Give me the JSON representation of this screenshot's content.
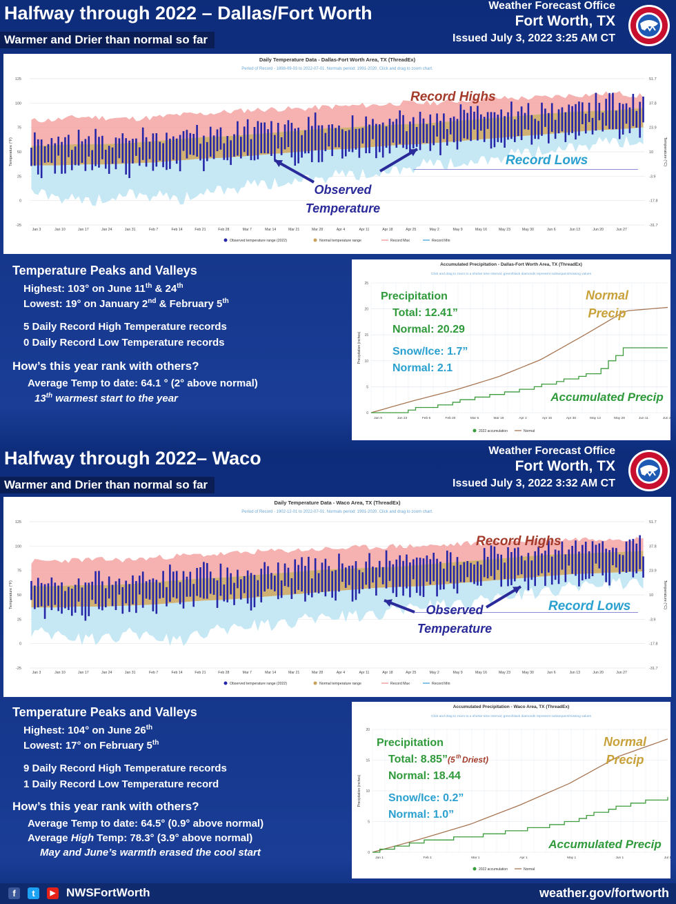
{
  "dfw": {
    "title": "Halfway through 2022 – Dallas/Fort Worth",
    "subtitle": "Warmer and Drier than normal so far",
    "office_line1": "Weather Forecast Office",
    "office_line2": "Fort Worth, TX",
    "issued": "Issued July 3, 2022 3:25 AM CT",
    "chart_title": "Daily Temperature Data - Dallas-Fort Worth Area, TX (ThreadEx)",
    "chart_subtitle": "Period of Record - 1898-09-03 to 2022-07-01. Normals period: 1991-2020. Click and drag to zoom chart.",
    "annot_record_highs": "Record Highs",
    "annot_record_lows": "Record Lows",
    "annot_observed_1": "Observed",
    "annot_observed_2": "Temperature",
    "stats_heading": "Temperature Peaks and Valleys",
    "highest_pre": "Highest: 103° on June 11",
    "highest_sup1": "th",
    "highest_mid": " & 24",
    "highest_sup2": "th",
    "lowest_pre": "Lowest: 19° on January 2",
    "lowest_sup1": "nd",
    "lowest_mid": " & February 5",
    "lowest_sup2": "th",
    "record_high_line": "5 Daily Record High Temperature records",
    "record_low_line": "0 Daily Record Low Temperature records",
    "rank_heading": "How’s this year rank with others?",
    "avg_temp": "Average Temp to date: 64.1 ° (2° above normal)",
    "rank_num": "13",
    "rank_sup": "th",
    "rank_rest": " warmest start to the year",
    "precip_title": "Accumulated Precipitation - Dallas-Fort Worth Area, TX (ThreadEx)",
    "precip_subtitle": "Click and drag to zoom to a shorter time interval; green/black diamonds represent subsequent/missing values",
    "precip_heading": "Precipitation",
    "precip_total": "Total: 12.41”",
    "precip_normal": "Normal: 20.29",
    "snow_total": "Snow/Ice: 1.7”",
    "snow_normal": "Normal: 2.1",
    "normal_precip_1": "Normal",
    "normal_precip_2": "Precip",
    "accum_precip": "Accumulated Precip"
  },
  "waco": {
    "title": "Halfway through 2022– Waco",
    "subtitle": "Warmer and Drier than normal so far",
    "office_line1": "Weather Forecast Office",
    "office_line2": "Fort Worth, TX",
    "issued": "Issued July 3, 2022 3:32 AM CT",
    "chart_title": "Daily Temperature Data - Waco Area, TX (ThreadEx)",
    "chart_subtitle": "Period of Record - 1902-12-01 to 2022-07-01. Normals period: 1991-2020. Click and drag to zoom chart.",
    "annot_record_highs": "Record Highs",
    "annot_record_lows": "Record Lows",
    "annot_observed_1": "Observed",
    "annot_observed_2": "Temperature",
    "stats_heading": "Temperature Peaks and Valleys",
    "highest_pre": "Highest: 104° on June 26",
    "highest_sup1": "th",
    "lowest_pre": "Lowest: 17° on February 5",
    "lowest_sup1": "th",
    "record_high_line": "9 Daily Record High Temperature records",
    "record_low_line": "1 Daily Record Low Temperature record",
    "rank_heading": "How’s this year rank with others?",
    "avg_temp": "Average Temp to date: 64.5° (0.9° above normal)",
    "avg_high": "Average High Temp: 78.3° (3.9° above normal)",
    "avg_high_pre": "Average ",
    "avg_high_italic": "High",
    "avg_high_post": " Temp: 78.3° (3.9° above normal)",
    "note": "May and June’s warmth erased the cool start",
    "precip_title": "Accumulated Precipitation - Waco Area, TX (ThreadEx)",
    "precip_subtitle": "Click and drag to zoom to a shorter time interval; green/black diamonds represent subsequent/missing values",
    "precip_heading": "Precipitation",
    "precip_total": "Total: 8.85”",
    "precip_rank": "(5",
    "precip_rank_sup": "th",
    "precip_rank_rest": " Driest)",
    "precip_normal": "Normal: 18.44",
    "snow_total": "Snow/Ice: 0.2”",
    "snow_normal": "Normal: 1.0”",
    "normal_precip_1": "Normal",
    "normal_precip_2": "Precip",
    "accum_precip": "Accumulated Precip"
  },
  "footer": {
    "handle": "NWSFortWorth",
    "website": "weather.gov/fortworth",
    "fb_icon": "f",
    "tw_icon": "t",
    "yt_icon": "▶"
  },
  "colors": {
    "observed": "#2525a8",
    "normal_range": "#c8a25a",
    "record_max": "#f4a3a3",
    "record_min": "#bfe6f3",
    "accumulation": "#3c9c3c",
    "normal_precip": "#a87552",
    "annotation_red": "#a33a2a",
    "annotation_blue": "#2aa0d0",
    "annotation_navy": "#2a2a9a",
    "green_text": "#2f9a3a",
    "gold_text": "#c9a13a"
  },
  "chart_data": [
    {
      "type": "area",
      "title": "Daily Temperature Data - Dallas-Fort Worth Area, TX (ThreadEx)",
      "ylabel": "Temperature (°F)",
      "ylabel_right": "Temperature (°C)",
      "ylim": [
        -25,
        125
      ],
      "yticks": [
        125,
        100,
        75,
        50,
        25,
        0,
        -25
      ],
      "yticks_right": [
        "51.7",
        "37.8",
        "23.9",
        "10",
        "-3.9",
        "-17.8",
        "-31.7"
      ],
      "xticks": [
        "Jan 3",
        "Jan 10",
        "Jan 17",
        "Jan 24",
        "Jan 31",
        "Feb 7",
        "Feb 14",
        "Feb 21",
        "Feb 28",
        "Mar 7",
        "Mar 14",
        "Mar 21",
        "Mar 28",
        "Apr 4",
        "Apr 11",
        "Apr 18",
        "Apr 25",
        "May 2",
        "May 9",
        "May 16",
        "May 23",
        "May 30",
        "Jun 6",
        "Jun 13",
        "Jun 20",
        "Jun 27"
      ],
      "legend": [
        "Observed temperature range (2022)",
        "Normal temperature range",
        "Record Max",
        "Record Min"
      ],
      "series": [
        {
          "name": "Record Max",
          "values": [
            82,
            83,
            86,
            85,
            84,
            85,
            88,
            89,
            91,
            93,
            94,
            94,
            96,
            97,
            98,
            100,
            100,
            101,
            104,
            105,
            105,
            106,
            108,
            109,
            110,
            107
          ]
        },
        {
          "name": "Normal High",
          "values": [
            56,
            57,
            58,
            58,
            59,
            61,
            63,
            65,
            66,
            68,
            70,
            72,
            74,
            75,
            77,
            78,
            79,
            81,
            83,
            85,
            87,
            89,
            91,
            92,
            93,
            95
          ]
        },
        {
          "name": "Normal Low",
          "values": [
            36,
            36,
            37,
            37,
            38,
            39,
            41,
            43,
            44,
            46,
            48,
            50,
            52,
            53,
            55,
            57,
            58,
            60,
            62,
            64,
            66,
            68,
            70,
            72,
            73,
            75
          ]
        },
        {
          "name": "Record Min",
          "values": [
            10,
            5,
            -2,
            2,
            8,
            5,
            0,
            10,
            12,
            15,
            18,
            22,
            24,
            26,
            28,
            32,
            36,
            38,
            40,
            44,
            48,
            52,
            55,
            58,
            60,
            62
          ]
        }
      ],
      "observed_highlights": {
        "highest": 103,
        "lowest": 19
      }
    },
    {
      "type": "line",
      "title": "Accumulated Precipitation - Dallas-Fort Worth Area, TX (ThreadEx)",
      "ylabel": "Precipitation (inches)",
      "ylim": [
        0,
        25
      ],
      "yticks": [
        25,
        20,
        15,
        10,
        5,
        0
      ],
      "xticks": [
        "Jan 9",
        "Jan 23",
        "Feb 6",
        "Feb 20",
        "Mar 5",
        "Mar 19",
        "Apr 2",
        "Apr 16",
        "Apr 30",
        "May 14",
        "May 28",
        "Jun 11",
        "Jun 25"
      ],
      "legend": [
        "2022 accumulation",
        "Normal"
      ],
      "series": [
        {
          "name": "2022 accumulation",
          "x": [
            "Jan 1",
            "Jan 23",
            "Feb 6",
            "Feb 20",
            "Mar 5",
            "Mar 19",
            "Apr 2",
            "Apr 16",
            "Apr 30",
            "May 14",
            "May 28",
            "Jun 11",
            "Jun 25",
            "Jul 1"
          ],
          "values": [
            0,
            0,
            0.8,
            1.5,
            2.4,
            3.2,
            4.1,
            4.8,
            5.9,
            6.9,
            8.0,
            12.41,
            12.41,
            12.41
          ]
        },
        {
          "name": "Normal",
          "x": [
            "Jan 1",
            "Feb 6",
            "Mar 5",
            "Apr 2",
            "Apr 30",
            "May 28",
            "Jun 25",
            "Jul 1"
          ],
          "values": [
            0,
            2.3,
            4.4,
            6.9,
            10.2,
            14.8,
            19.6,
            20.29
          ]
        }
      ]
    },
    {
      "type": "area",
      "title": "Daily Temperature Data - Waco Area, TX (ThreadEx)",
      "ylabel": "Temperature (°F)",
      "ylabel_right": "Temperature (°C)",
      "ylim": [
        -25,
        125
      ],
      "yticks": [
        125,
        100,
        75,
        50,
        25,
        0,
        -25
      ],
      "yticks_right": [
        "51.7",
        "37.8",
        "23.9",
        "10",
        "-3.9",
        "-17.8",
        "-31.7"
      ],
      "xticks": [
        "Jan 3",
        "Jan 10",
        "Jan 17",
        "Jan 24",
        "Jan 31",
        "Feb 7",
        "Feb 14",
        "Feb 21",
        "Feb 28",
        "Mar 7",
        "Mar 14",
        "Mar 21",
        "Mar 28",
        "Apr 4",
        "Apr 11",
        "Apr 18",
        "Apr 25",
        "May 2",
        "May 9",
        "May 16",
        "May 23",
        "May 30",
        "Jun 6",
        "Jun 13",
        "Jun 20",
        "Jun 27"
      ],
      "legend": [
        "Observed temperature range (2022)",
        "Normal temperature range",
        "Record Max",
        "Record Min"
      ],
      "series": [
        {
          "name": "Record Max",
          "values": [
            84,
            85,
            86,
            86,
            86,
            88,
            90,
            91,
            92,
            94,
            95,
            96,
            97,
            98,
            99,
            100,
            100,
            101,
            103,
            104,
            105,
            106,
            107,
            108,
            108,
            107
          ]
        },
        {
          "name": "Normal High",
          "values": [
            59,
            59,
            60,
            60,
            61,
            63,
            65,
            67,
            68,
            70,
            72,
            74,
            76,
            77,
            78,
            79,
            81,
            83,
            85,
            87,
            89,
            91,
            92,
            93,
            94,
            95
          ]
        },
        {
          "name": "Normal Low",
          "values": [
            37,
            37,
            38,
            38,
            39,
            40,
            42,
            44,
            45,
            47,
            49,
            51,
            53,
            55,
            57,
            58,
            59,
            61,
            63,
            65,
            67,
            69,
            71,
            72,
            73,
            74
          ]
        },
        {
          "name": "Record Min",
          "values": [
            12,
            8,
            4,
            6,
            10,
            6,
            2,
            12,
            14,
            18,
            20,
            24,
            26,
            28,
            30,
            34,
            38,
            40,
            42,
            46,
            50,
            54,
            57,
            60,
            62,
            63
          ]
        }
      ],
      "observed_highlights": {
        "highest": 104,
        "lowest": 17
      }
    },
    {
      "type": "line",
      "title": "Accumulated Precipitation - Waco Area, TX (ThreadEx)",
      "ylabel": "Precipitation (inches)",
      "ylim": [
        0,
        20
      ],
      "yticks": [
        20,
        15,
        10,
        5,
        0
      ],
      "xticks": [
        "Jan 1",
        "Feb 1",
        "Mar 1",
        "Apr 1",
        "May 1",
        "Jun 1",
        "Jul 1"
      ],
      "legend": [
        "2022 accumulation",
        "Normal"
      ],
      "series": [
        {
          "name": "2022 accumulation",
          "x": [
            "Jan 1",
            "Feb 1",
            "Mar 1",
            "Apr 1",
            "May 1",
            "Jun 1",
            "Jul 1"
          ],
          "values": [
            0,
            1.8,
            2.6,
            3.6,
            4.9,
            7.6,
            8.85
          ]
        },
        {
          "name": "Normal",
          "x": [
            "Jan 1",
            "Feb 1",
            "Mar 1",
            "Apr 1",
            "May 1",
            "Jun 1",
            "Jul 1"
          ],
          "values": [
            0,
            2.2,
            4.6,
            7.7,
            11.2,
            15.6,
            18.44
          ]
        }
      ]
    }
  ]
}
